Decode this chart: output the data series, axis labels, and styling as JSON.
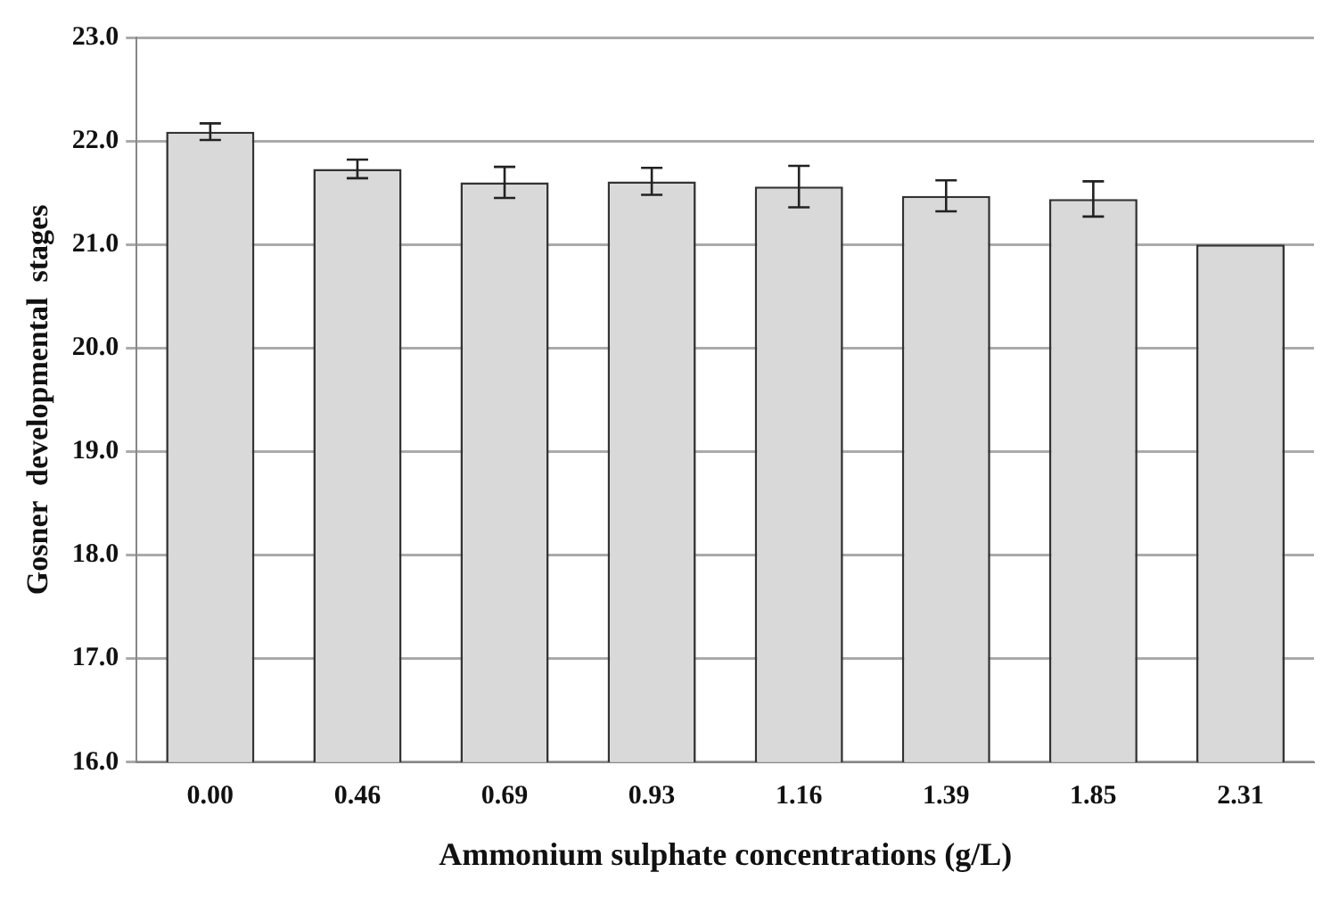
{
  "chart_data": {
    "type": "bar",
    "xlabel": "Ammonium sulphate concentrations (g/L)",
    "ylabel": "Gosner  developmental  stages",
    "categories": [
      "0.00",
      "0.46",
      "0.69",
      "0.93",
      "1.16",
      "1.39",
      "1.85",
      "2.31"
    ],
    "values": [
      22.09,
      21.73,
      21.6,
      21.61,
      21.56,
      21.47,
      21.44,
      21.0
    ],
    "errors": [
      0.08,
      0.09,
      0.15,
      0.13,
      0.2,
      0.15,
      0.17,
      null
    ],
    "color": "#d9d9d9",
    "ylim": [
      16,
      23
    ],
    "yticks": [
      {
        "value": 16,
        "label": "16.0"
      },
      {
        "value": 17,
        "label": "17.0"
      },
      {
        "value": 18,
        "label": "18.0"
      },
      {
        "value": 19,
        "label": "19.0"
      },
      {
        "value": 20,
        "label": "20.0"
      },
      {
        "value": 21,
        "label": "21.0"
      },
      {
        "value": 22,
        "label": "22.0"
      },
      {
        "value": 23,
        "label": "23.0"
      }
    ],
    "grid": "y",
    "legend": false
  }
}
